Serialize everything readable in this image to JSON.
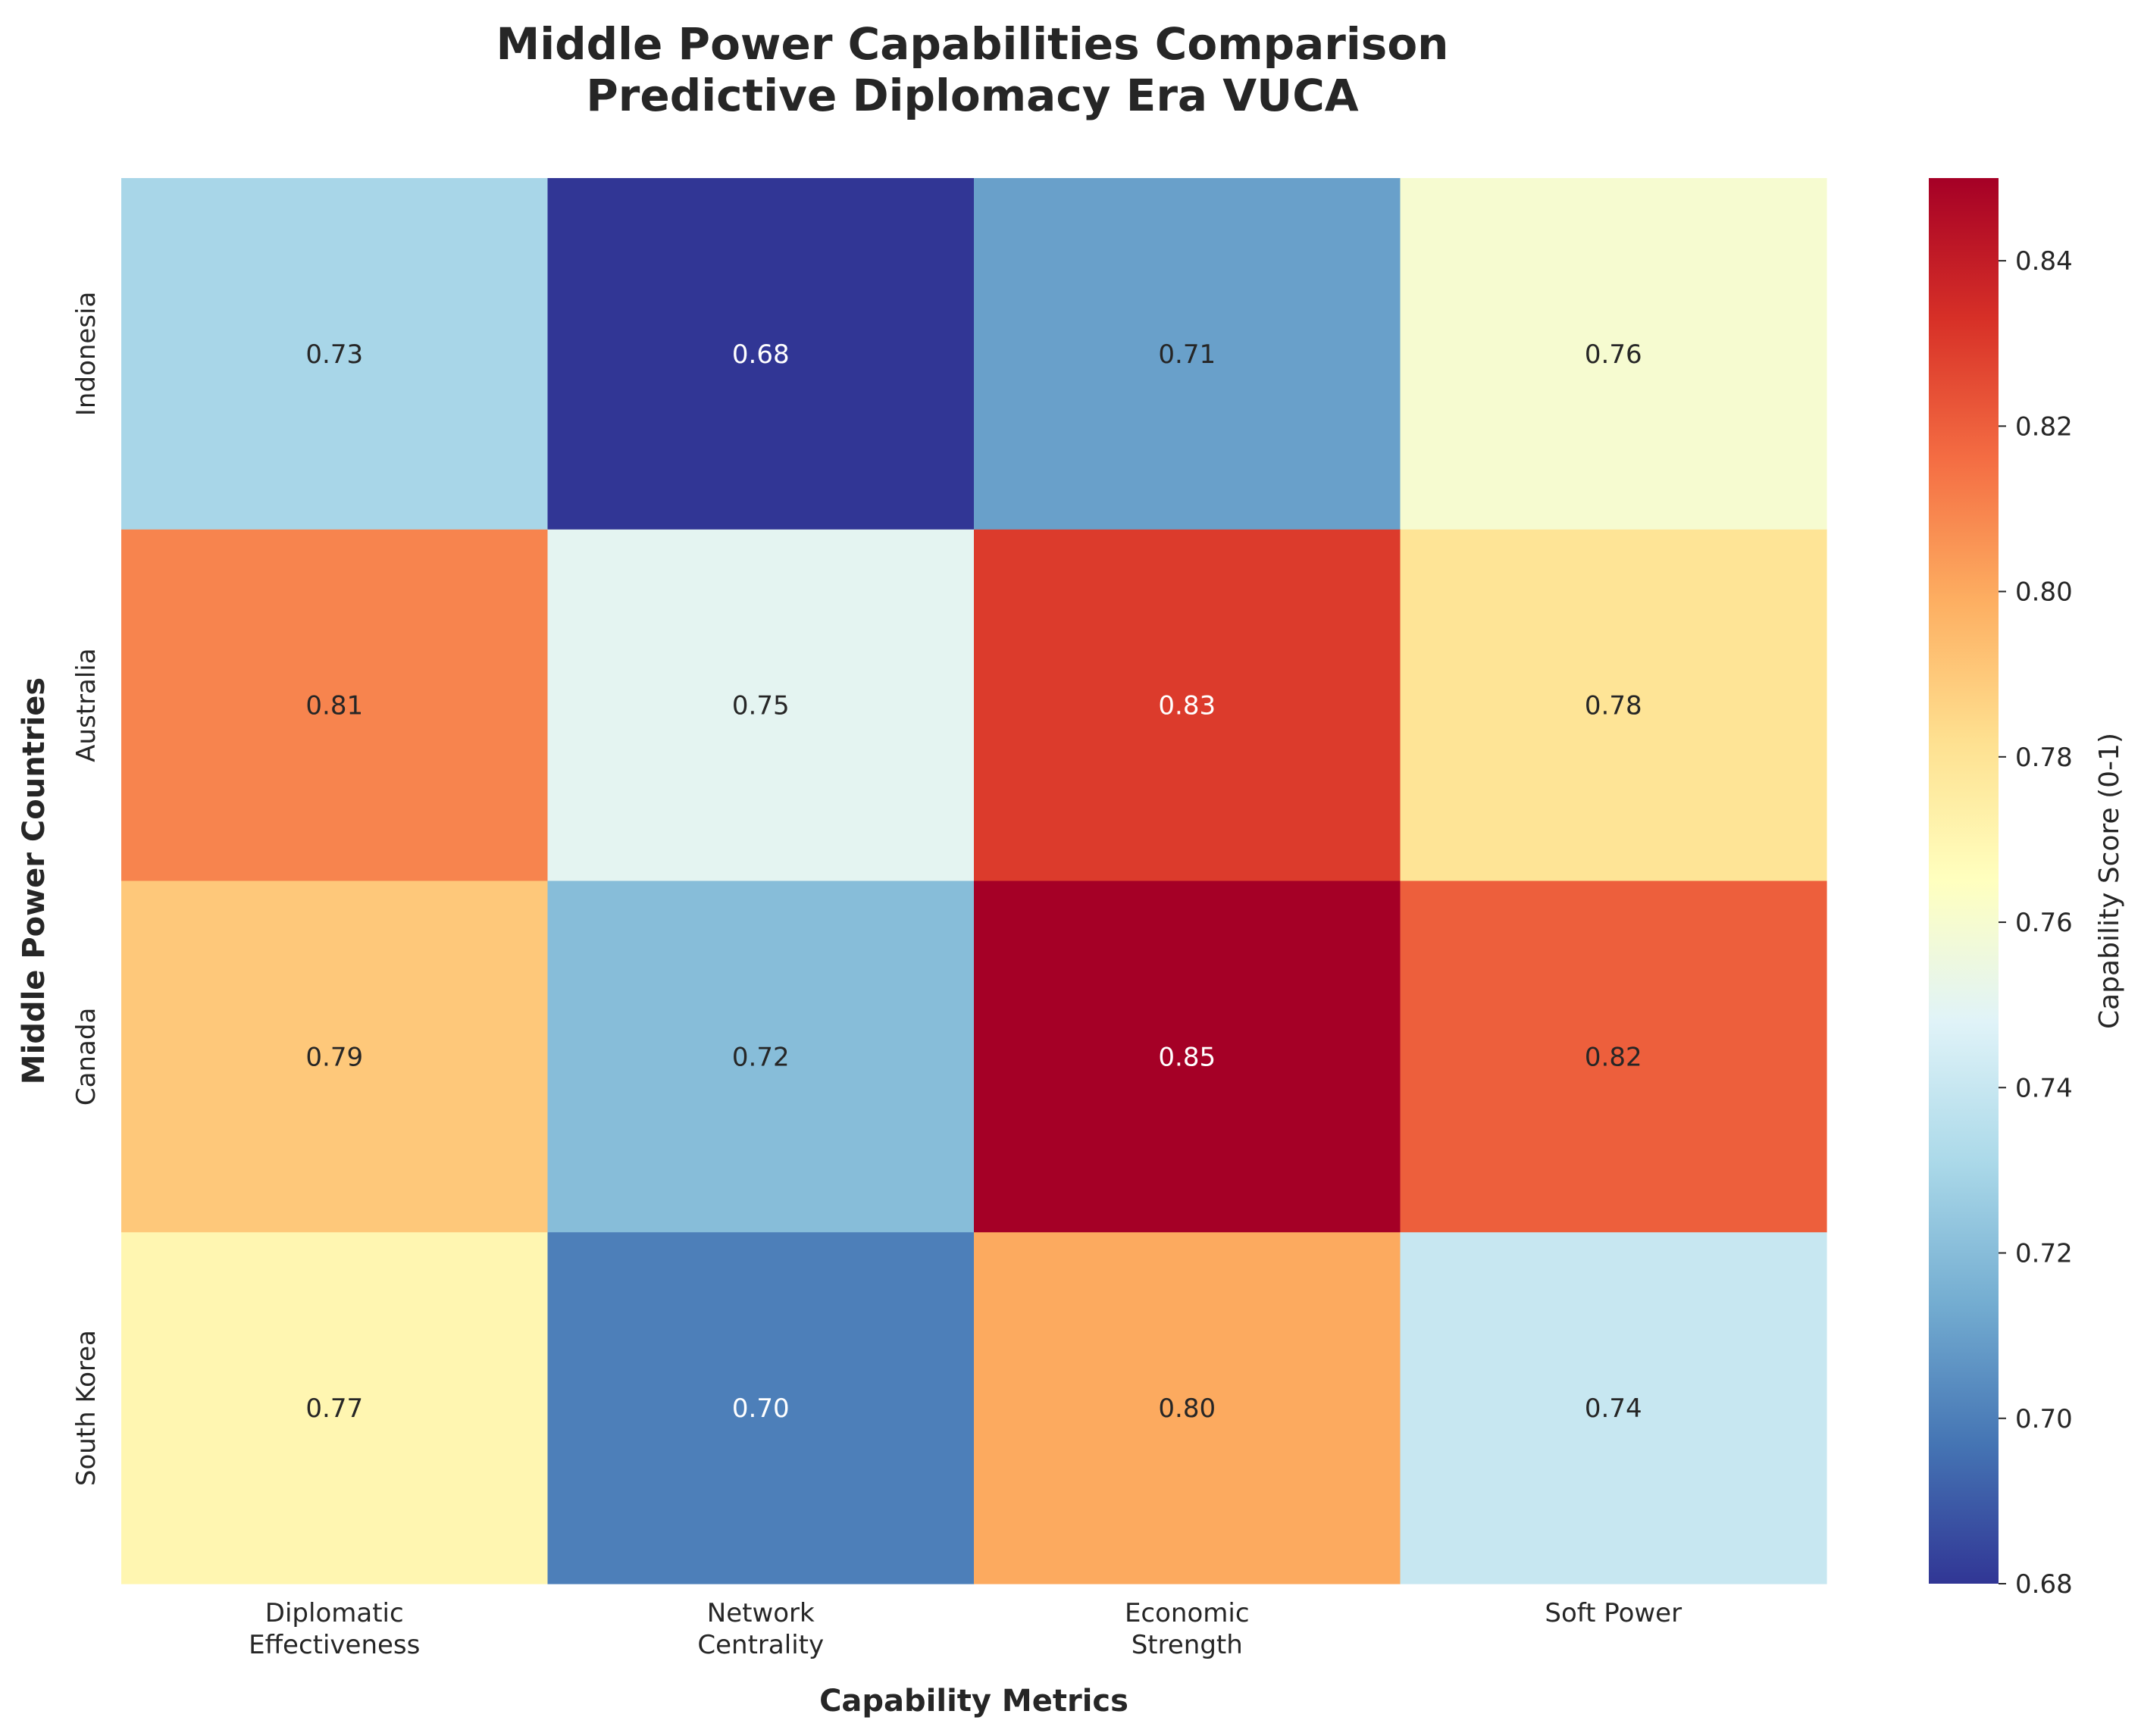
{
  "chart_data": {
    "type": "heatmap",
    "title": [
      "Middle Power Capabilities Comparison",
      "Predictive Diplomacy Era VUCA"
    ],
    "xlabel": "Capability Metrics",
    "ylabel": "Middle Power Countries",
    "x_categories": [
      [
        "Diplomatic",
        "Effectiveness"
      ],
      [
        "Network",
        "Centrality"
      ],
      [
        "Economic",
        "Strength"
      ],
      [
        "Soft Power"
      ]
    ],
    "y_categories": [
      "Indonesia",
      "Australia",
      "Canada",
      "South Korea"
    ],
    "values": [
      [
        0.73,
        0.68,
        0.71,
        0.76
      ],
      [
        0.81,
        0.75,
        0.83,
        0.78
      ],
      [
        0.79,
        0.72,
        0.85,
        0.82
      ],
      [
        0.77,
        0.7,
        0.8,
        0.74
      ]
    ],
    "value_labels": [
      [
        "0.73",
        "0.68",
        "0.71",
        "0.76"
      ],
      [
        "0.81",
        "0.75",
        "0.83",
        "0.78"
      ],
      [
        "0.79",
        "0.72",
        "0.85",
        "0.82"
      ],
      [
        "0.77",
        "0.70",
        "0.80",
        "0.74"
      ]
    ],
    "colorbar": {
      "label": "Capability Score (0-1)",
      "range": [
        0.68,
        0.85
      ],
      "ticks": [
        0.68,
        0.7,
        0.72,
        0.74,
        0.76,
        0.78,
        0.8,
        0.82,
        0.84
      ],
      "tick_labels": [
        "0.68",
        "0.70",
        "0.72",
        "0.74",
        "0.76",
        "0.78",
        "0.80",
        "0.82",
        "0.84"
      ],
      "colormap": "RdYlBu_r",
      "stops": [
        "#313695",
        "#4575b4",
        "#74add1",
        "#abd9e9",
        "#e0f3f8",
        "#ffffbf",
        "#fee090",
        "#fdae61",
        "#f46d43",
        "#d73027",
        "#a50026"
      ]
    },
    "grid": false
  }
}
